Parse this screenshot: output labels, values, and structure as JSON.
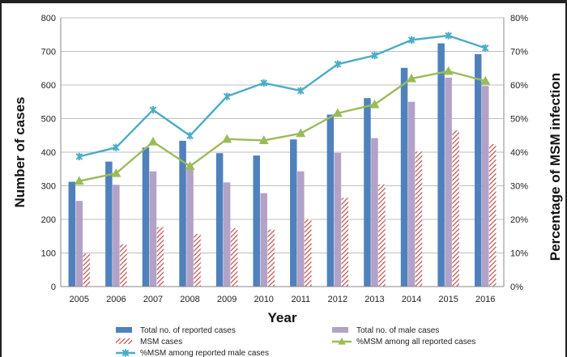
{
  "chart_data": {
    "type": "bar",
    "categories": [
      "2005",
      "2006",
      "2007",
      "2008",
      "2009",
      "2010",
      "2011",
      "2012",
      "2013",
      "2014",
      "2015",
      "2016"
    ],
    "xlabel": "Year",
    "ylabel": "Number of cases",
    "y2label": "Percentage of MSM infection",
    "ylim": [
      0,
      800
    ],
    "y2lim": [
      0,
      80
    ],
    "yticks": [
      "0",
      "100",
      "200",
      "300",
      "400",
      "500",
      "600",
      "700",
      "800"
    ],
    "y2ticks": [
      "0%",
      "10%",
      "20%",
      "30%",
      "40%",
      "50%",
      "60%",
      "70%",
      "80%"
    ],
    "grid": true,
    "legend_position": "bottom",
    "series": [
      {
        "name": "Total no. of reported cases",
        "kind": "bar",
        "axis": "left",
        "color": "#4f81bd",
        "values": [
          312,
          372,
          414,
          434,
          397,
          390,
          438,
          512,
          561,
          651,
          724,
          692
        ]
      },
      {
        "name": "Total no. of male cases",
        "kind": "bar",
        "axis": "left",
        "color": "#b3a2c7",
        "values": [
          255,
          303,
          343,
          350,
          310,
          278,
          343,
          398,
          442,
          550,
          622,
          597
        ]
      },
      {
        "name": "MSM cases",
        "kind": "bar-hatched",
        "axis": "left",
        "color": "#c0504d",
        "values": [
          98,
          126,
          177,
          157,
          174,
          170,
          200,
          264,
          304,
          402,
          465,
          424
        ]
      },
      {
        "name": "%MSM among all reported cases",
        "kind": "line",
        "axis": "right",
        "color": "#9bbb59",
        "values": [
          31.4,
          33.7,
          43.1,
          35.8,
          43.9,
          43.5,
          45.6,
          51.6,
          54.2,
          61.9,
          64.1,
          61.2
        ]
      },
      {
        "name": "%MSM among reported male cases",
        "kind": "line",
        "axis": "right",
        "color": "#4bacc6",
        "values": [
          38.7,
          41.4,
          52.6,
          44.9,
          56.6,
          60.6,
          58.3,
          66.2,
          68.8,
          73.4,
          74.7,
          71.0
        ]
      }
    ]
  }
}
